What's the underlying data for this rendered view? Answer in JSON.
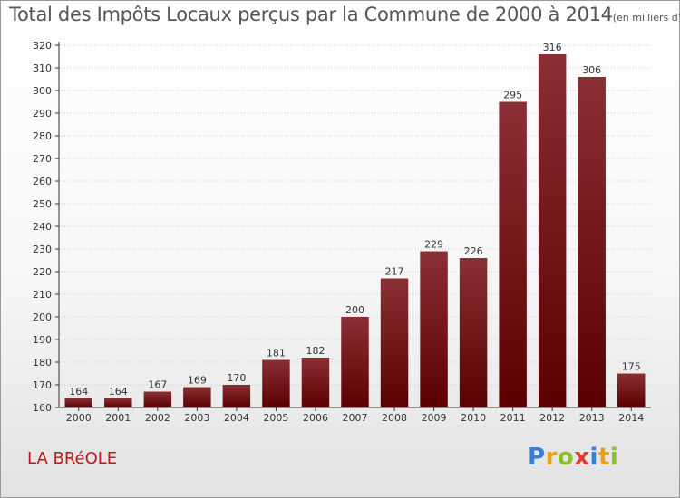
{
  "header": {
    "title": "Total des Impôts Locaux perçus par la Commune de 2000 à 2014",
    "unit": "(en milliers d'€)"
  },
  "footer": {
    "commune": "LA BRéOLE",
    "logo": "Proxiti"
  },
  "colors": {
    "bar_dark": "#5a0000",
    "bar_light": "#8a3035",
    "grid": "#cccccc",
    "axis": "#333333"
  },
  "chart_data": {
    "type": "bar",
    "title": "Total des Impôts Locaux perçus par la Commune de 2000 à 2014",
    "xlabel": "",
    "ylabel": "",
    "categories": [
      "2000",
      "2001",
      "2002",
      "2003",
      "2004",
      "2005",
      "2006",
      "2007",
      "2008",
      "2009",
      "2010",
      "2011",
      "2012",
      "2013",
      "2014"
    ],
    "values": [
      164,
      164,
      167,
      169,
      170,
      181,
      182,
      200,
      217,
      229,
      226,
      295,
      316,
      306,
      175
    ],
    "ylim": [
      160,
      320
    ],
    "ytick_step": 10,
    "grid": true
  }
}
